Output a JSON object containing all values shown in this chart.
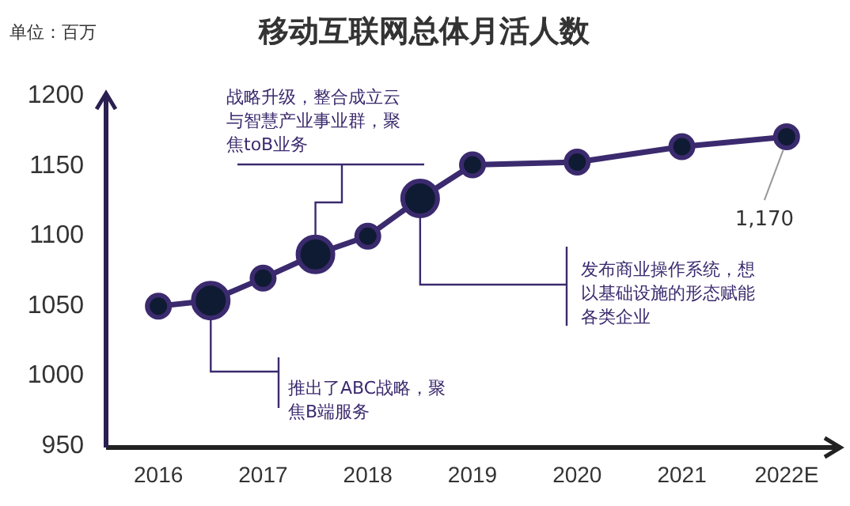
{
  "chart_data": {
    "type": "line",
    "title": "移动互联网总体月活人数",
    "ylabel": "单位：百万",
    "x": [
      2016,
      2016.5,
      2017,
      2017.5,
      2018,
      2018.5,
      2019,
      2020,
      2021,
      2022
    ],
    "series": [
      {
        "color": "#3b2a6e",
        "values": [
          1049,
          1053,
          1069,
          1086,
          1099,
          1126,
          1150,
          1152,
          1163,
          1170
        ],
        "value_labels": [
          null,
          null,
          null,
          null,
          null,
          null,
          null,
          null,
          null,
          "1,170"
        ]
      }
    ],
    "xlim": [
      2015.5,
      2022.5
    ],
    "ylim": [
      948,
      1200
    ],
    "xticks": [
      2016,
      2017,
      2018,
      2019,
      2020,
      2021,
      {
        "value": 2022,
        "label": "2022E"
      }
    ],
    "yticks": [
      950,
      1000,
      1050,
      1100,
      1150,
      1200
    ],
    "marker": "circle",
    "annotations": [
      {
        "text": "推出了ABC战略，聚焦B端服务",
        "x": 2016.5,
        "y": 1053
      },
      {
        "text": "战略升级，整合成立云与智慧产业事业群，聚焦toB业务",
        "x": 2017.5,
        "y": 1086
      },
      {
        "text": "发布商业操作系统，想以基础设施的形态赋能各类企业",
        "x": 2018.5,
        "y": 1126
      }
    ]
  }
}
